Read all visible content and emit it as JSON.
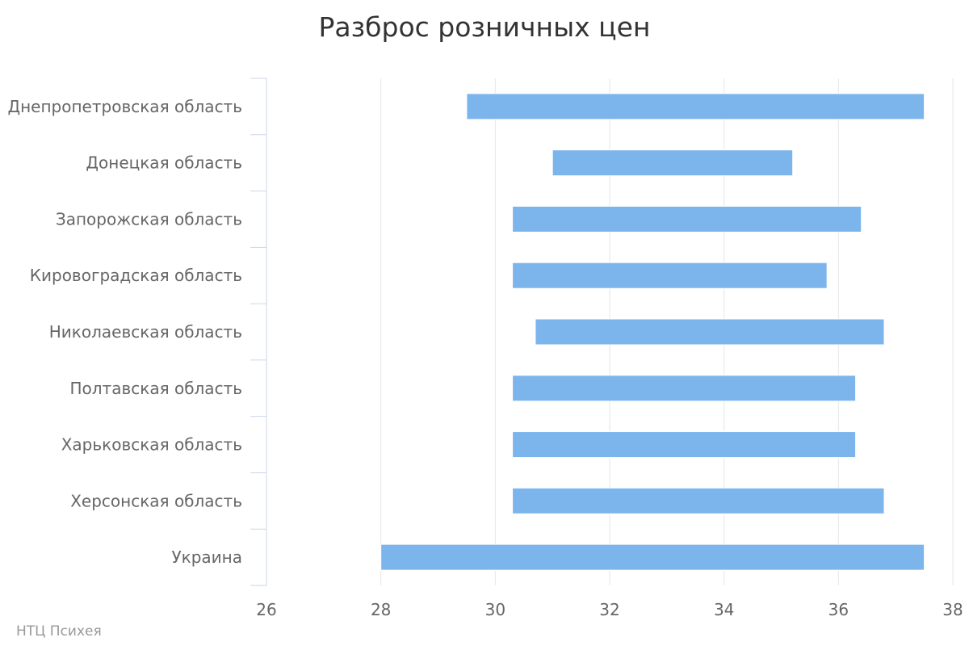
{
  "chart_data": {
    "type": "bar",
    "orientation": "horizontal",
    "subtype": "floating-range",
    "title": "Разброс розничных цен",
    "credit": "НТЦ Психея",
    "categories": [
      "Днепропетровская область",
      "Донецкая область",
      "Запорожская область",
      "Кировоградская область",
      "Николаевская область",
      "Полтавская область",
      "Харьковская область",
      "Херсонская область",
      "Украина"
    ],
    "series": [
      {
        "low": [
          29.5,
          31.0,
          30.3,
          30.3,
          30.7,
          30.3,
          30.3,
          30.3,
          28.0
        ],
        "high": [
          37.5,
          35.2,
          36.4,
          35.8,
          36.8,
          36.3,
          36.3,
          36.8,
          37.5
        ]
      }
    ],
    "xlim": [
      26,
      38
    ],
    "xticks": [
      26,
      28,
      30,
      32,
      34,
      36,
      38
    ],
    "grid": true,
    "legend": false,
    "colors": {
      "bar": "#7cb5ec",
      "grid": "#e6e6e6",
      "axis": "#ccd6eb",
      "label": "#666666",
      "title": "#333333",
      "credit": "#999999"
    }
  }
}
